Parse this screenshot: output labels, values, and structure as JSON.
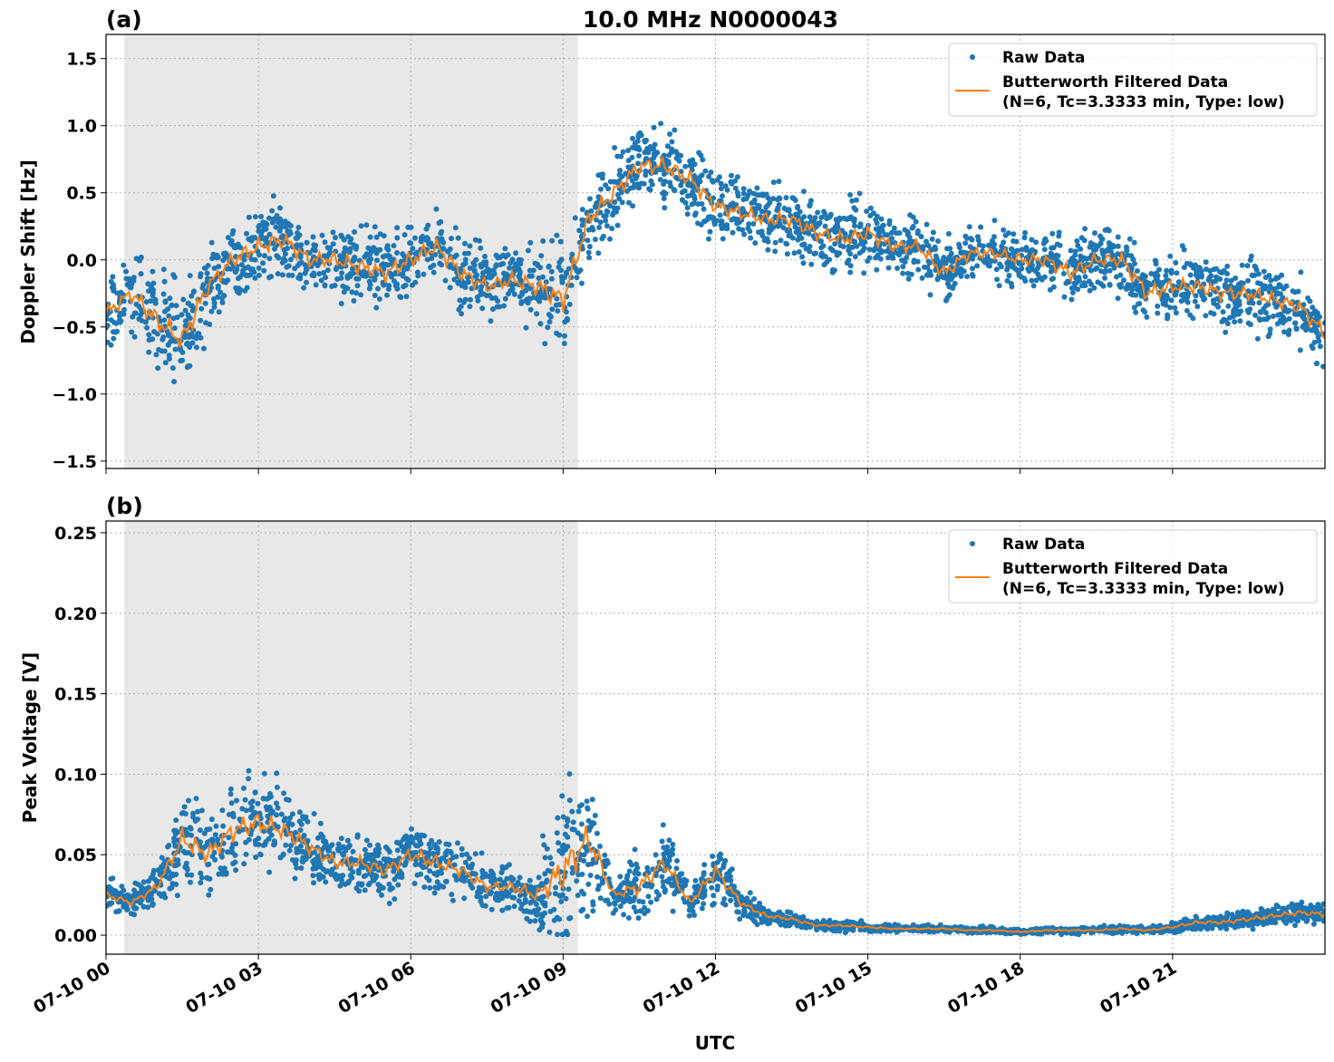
{
  "chart_data": [
    {
      "type": "scatter",
      "panel_label": "(a)",
      "title": "10.0 MHz N0000043",
      "ylabel": "Doppler Shift [Hz]",
      "xlabel": "",
      "xlim_hours": [
        0,
        24
      ],
      "ylim": [
        -1.555,
        1.68
      ],
      "yticks": [
        -1.5,
        -1.0,
        -0.5,
        0.0,
        0.5,
        1.0,
        1.5
      ],
      "ytick_labels": [
        "−1.5",
        "−1.0",
        "−0.5",
        "0.0",
        "0.5",
        "1.0",
        "1.5"
      ],
      "grid": true,
      "legend_placement": "top-right",
      "shaded_region_hours": [
        0.36,
        9.29
      ],
      "x_hours": [
        0,
        0.5,
        1,
        1.5,
        2,
        2.5,
        3,
        3.5,
        4,
        4.5,
        5,
        5.5,
        6,
        6.5,
        7,
        7.5,
        8,
        8.5,
        9,
        9.5,
        10,
        10.5,
        11,
        11.5,
        12,
        12.5,
        13,
        13.5,
        14,
        14.5,
        15,
        15.5,
        16,
        16.5,
        17,
        17.5,
        18,
        18.5,
        19,
        19.5,
        20,
        20.5,
        21,
        21.5,
        22,
        22.5,
        23,
        23.5,
        24
      ],
      "series": [
        {
          "name": "Butterworth Filtered Data\n(N=6, Tc=3.3333 min, Type: low)",
          "kind": "line",
          "color": "#ff7f0e",
          "values": [
            -0.4,
            -0.25,
            -0.45,
            -0.6,
            -0.2,
            0.0,
            0.1,
            0.15,
            0.0,
            0.0,
            -0.05,
            -0.1,
            0.0,
            0.1,
            -0.1,
            -0.2,
            -0.15,
            -0.2,
            -0.3,
            0.3,
            0.5,
            0.7,
            0.7,
            0.6,
            0.4,
            0.35,
            0.3,
            0.3,
            0.2,
            0.15,
            0.2,
            0.1,
            0.1,
            -0.1,
            0.05,
            0.05,
            0.0,
            0.0,
            -0.1,
            0.0,
            0.0,
            -0.25,
            -0.2,
            -0.2,
            -0.25,
            -0.25,
            -0.3,
            -0.35,
            -0.55
          ]
        },
        {
          "name": "Raw Data",
          "kind": "scatter",
          "color": "#1f77b4",
          "spread": [
            0.35,
            0.4,
            0.5,
            0.55,
            0.45,
            0.4,
            0.4,
            0.4,
            0.35,
            0.35,
            0.4,
            0.4,
            0.4,
            0.4,
            0.4,
            0.35,
            0.35,
            0.45,
            0.55,
            0.4,
            0.4,
            0.4,
            0.4,
            0.4,
            0.35,
            0.35,
            0.35,
            0.35,
            0.35,
            0.35,
            0.35,
            0.3,
            0.3,
            0.35,
            0.3,
            0.3,
            0.3,
            0.3,
            0.4,
            0.3,
            0.35,
            0.4,
            0.35,
            0.35,
            0.35,
            0.35,
            0.35,
            0.35,
            0.4
          ]
        }
      ]
    },
    {
      "type": "scatter",
      "panel_label": "(b)",
      "title": "",
      "ylabel": "Peak Voltage [V]",
      "xlabel": "UTC",
      "xlim_hours": [
        0,
        24
      ],
      "xtick_labels": [
        "07-10 00",
        "07-10 03",
        "07-10 06",
        "07-10 09",
        "07-10 12",
        "07-10 15",
        "07-10 18",
        "07-10 21"
      ],
      "ylim": [
        -0.0118,
        0.2573
      ],
      "yticks": [
        0.0,
        0.05,
        0.1,
        0.15,
        0.2,
        0.25
      ],
      "ytick_labels": [
        "0.00",
        "0.05",
        "0.10",
        "0.15",
        "0.20",
        "0.25"
      ],
      "grid": true,
      "legend_placement": "top-right",
      "shaded_region_hours": [
        0.36,
        9.29
      ],
      "x_hours": [
        0,
        0.5,
        1,
        1.5,
        2,
        2.5,
        3,
        3.5,
        4,
        4.5,
        5,
        5.5,
        6,
        6.5,
        7,
        7.5,
        8,
        8.5,
        9,
        9.5,
        10,
        10.5,
        11,
        11.5,
        12,
        12.5,
        13,
        13.5,
        14,
        14.5,
        15,
        15.5,
        16,
        16.5,
        17,
        17.5,
        18,
        18.5,
        19,
        19.5,
        20,
        20.5,
        21,
        21.5,
        22,
        22.5,
        23,
        23.5,
        24
      ],
      "series": [
        {
          "name": "Butterworth Filtered Data\n(N=6, Tc=3.3333 min, Type: low)",
          "kind": "line",
          "color": "#ff7f0e",
          "values": [
            0.025,
            0.02,
            0.03,
            0.06,
            0.05,
            0.065,
            0.07,
            0.065,
            0.055,
            0.045,
            0.045,
            0.04,
            0.05,
            0.045,
            0.04,
            0.03,
            0.03,
            0.025,
            0.04,
            0.06,
            0.025,
            0.03,
            0.045,
            0.02,
            0.04,
            0.02,
            0.012,
            0.01,
            0.006,
            0.006,
            0.005,
            0.004,
            0.004,
            0.004,
            0.003,
            0.003,
            0.002,
            0.003,
            0.003,
            0.003,
            0.004,
            0.003,
            0.005,
            0.008,
            0.008,
            0.01,
            0.012,
            0.014,
            0.013
          ]
        },
        {
          "name": "Raw Data",
          "kind": "scatter",
          "color": "#1f77b4",
          "spread": [
            0.015,
            0.012,
            0.015,
            0.04,
            0.035,
            0.045,
            0.04,
            0.035,
            0.03,
            0.025,
            0.025,
            0.025,
            0.03,
            0.03,
            0.025,
            0.02,
            0.02,
            0.03,
            0.08,
            0.06,
            0.015,
            0.03,
            0.035,
            0.012,
            0.03,
            0.012,
            0.008,
            0.006,
            0.004,
            0.005,
            0.004,
            0.003,
            0.003,
            0.003,
            0.003,
            0.003,
            0.002,
            0.003,
            0.003,
            0.003,
            0.004,
            0.003,
            0.005,
            0.007,
            0.007,
            0.008,
            0.009,
            0.01,
            0.01
          ]
        }
      ]
    }
  ],
  "legend": {
    "raw": "Raw Data",
    "filtered_line1": "Butterworth Filtered Data",
    "filtered_line2": "(N=6, Tc=3.3333 min, Type: low)"
  }
}
